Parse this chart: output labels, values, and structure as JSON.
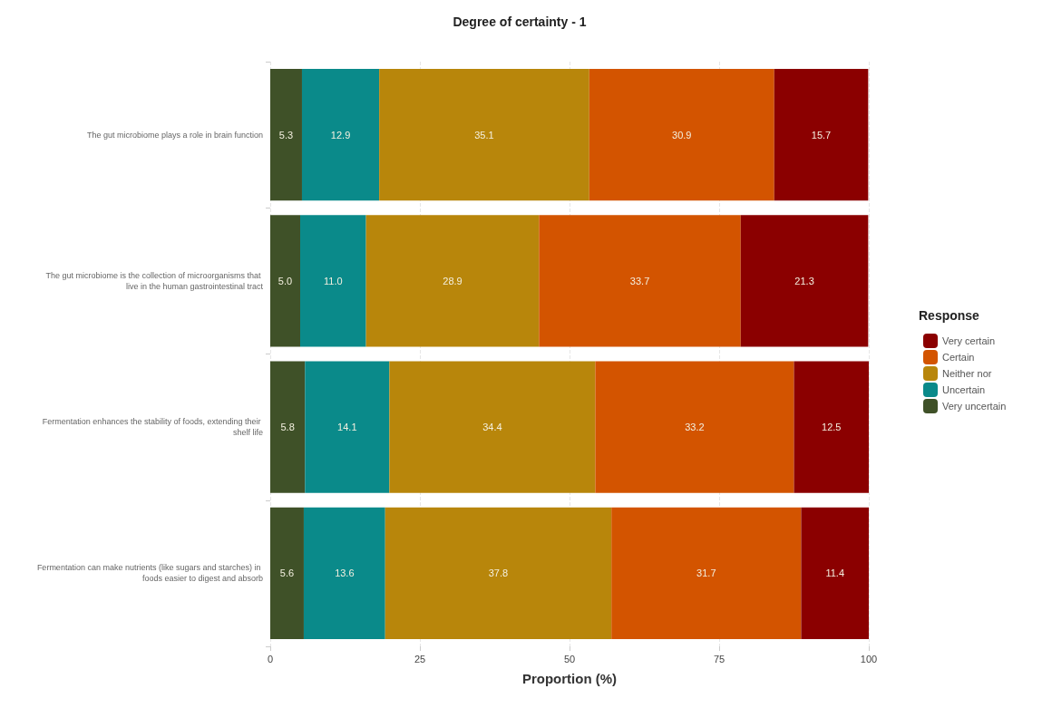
{
  "chart_data": {
    "type": "bar",
    "orientation": "horizontal",
    "stacked": true,
    "title": "Degree of certainty - 1",
    "xlabel": "Proportion (%)",
    "legend_title": "Response",
    "legend": "right",
    "categories": [
      "The gut microbiome plays a role in brain function",
      "The gut microbiome is the collection of microorganisms that live in the human gastrointestinal tract",
      "Fermentation enhances the stability of foods, extending their shelf life",
      "Fermentation can make nutrients (like sugars and starches) in foods easier to digest and absorb"
    ],
    "xlim": [
      0,
      100
    ],
    "xticks": [
      0,
      25,
      50,
      75,
      100
    ],
    "grid": "x",
    "series": [
      {
        "name": "Very uncertain",
        "color": "#3f5128",
        "values": [
          5.3,
          5.0,
          5.8,
          5.6
        ],
        "value_labels": [
          "5.3",
          "5.0",
          "5.8",
          "5.6"
        ]
      },
      {
        "name": "Uncertain",
        "color": "#0a8a8a",
        "values": [
          12.9,
          11.0,
          14.1,
          13.6
        ],
        "value_labels": [
          "12.9",
          "11.0",
          "14.1",
          "13.6"
        ]
      },
      {
        "name": "Neither nor",
        "color": "#b8860b",
        "values": [
          35.1,
          28.9,
          34.4,
          37.8
        ],
        "value_labels": [
          "35.1",
          "28.9",
          "34.4",
          "37.8"
        ]
      },
      {
        "name": "Certain",
        "color": "#d35400",
        "values": [
          30.9,
          33.7,
          33.2,
          31.7
        ],
        "value_labels": [
          "30.9",
          "33.7",
          "33.2",
          "31.7"
        ]
      },
      {
        "name": "Very certain",
        "color": "#8b0000",
        "values": [
          15.7,
          21.3,
          12.5,
          11.4
        ],
        "value_labels": [
          "15.7",
          "21.3",
          "12.5",
          "11.4"
        ]
      }
    ]
  }
}
